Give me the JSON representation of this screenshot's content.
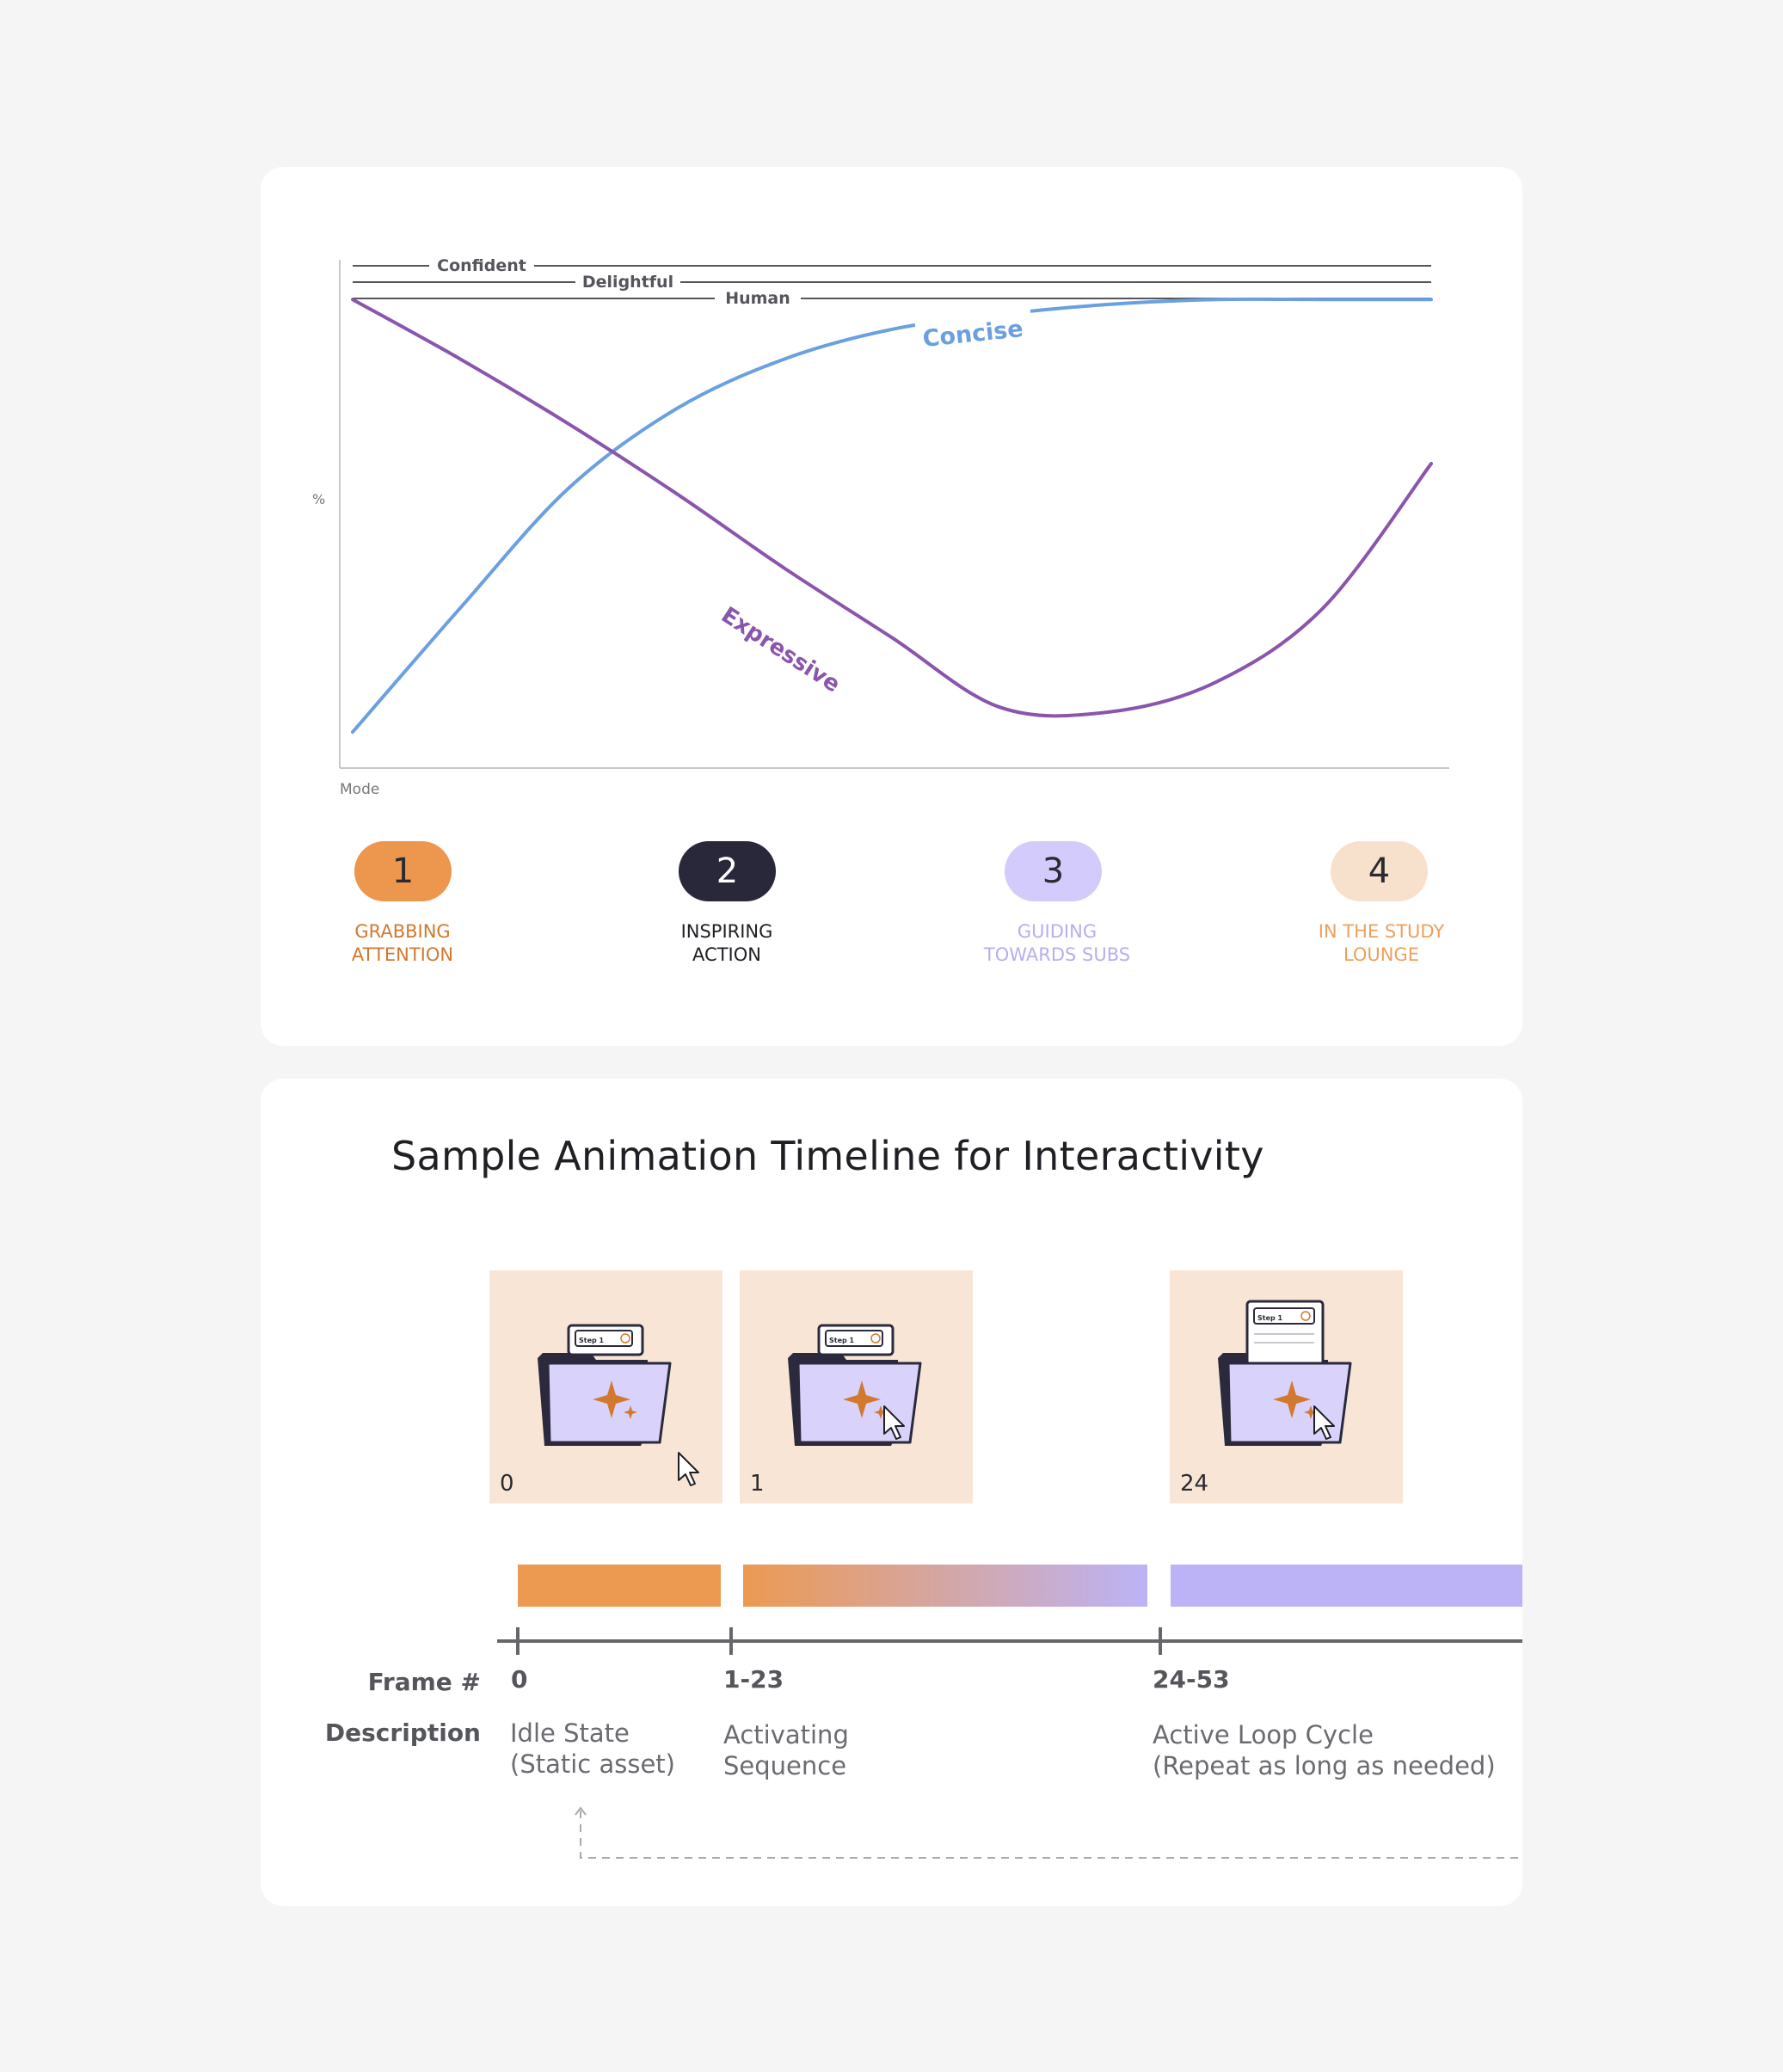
{
  "chart_data": {
    "type": "line",
    "title": "",
    "xlabel": "Mode",
    "ylabel": "%",
    "x": [
      0,
      0.1,
      0.2,
      0.3,
      0.4,
      0.5,
      0.6,
      0.7,
      0.8,
      0.9,
      1.0
    ],
    "series": [
      {
        "name": "Concise",
        "color": "#6aa0e0",
        "values": [
          5,
          30,
          54,
          70,
          80,
          86,
          89,
          91,
          92,
          92,
          92
        ]
      },
      {
        "name": "Expressive",
        "color": "#8a55ad",
        "values": [
          92,
          80,
          67,
          53,
          38,
          24,
          10,
          9,
          15,
          30,
          59
        ]
      }
    ],
    "reference_lines": [
      {
        "label": "Confident"
      },
      {
        "label": "Delightful"
      },
      {
        "label": "Human"
      }
    ],
    "grid": false,
    "ylim": [
      0,
      100
    ]
  },
  "stages": [
    {
      "number": "1",
      "label": "GRABBING\nATTENTION",
      "pill_color": "#ed964e",
      "number_color": "#2a2a30",
      "label_color": "#d2792f"
    },
    {
      "number": "2",
      "label": "INSPIRING\nACTION",
      "pill_color": "#28283a",
      "number_color": "#ffffff",
      "label_color": "#1f1f24"
    },
    {
      "number": "3",
      "label": "GUIDING\nTOWARDS SUBS",
      "pill_color": "#d3cbfb",
      "number_color": "#2a2a30",
      "label_color": "#b7aef0"
    },
    {
      "number": "4",
      "label": "IN THE STUDY\nLOUNGE",
      "pill_color": "#f8e1cc",
      "number_color": "#2a2a30",
      "label_color": "#eba15c"
    }
  ],
  "timeline": {
    "title": "Sample Animation Timeline for Interactivity",
    "frame_label": "Frame #",
    "description_label": "Description",
    "thumbnails": [
      {
        "frame": "0",
        "card_text": "Step 1"
      },
      {
        "frame": "1",
        "card_text": "Step 1"
      },
      {
        "frame": "24",
        "card_text": "Step 1"
      }
    ],
    "segments": [
      {
        "frames": "0",
        "description": "Idle State\n(Static asset)"
      },
      {
        "frames": "1-23",
        "description": "Activating\nSequence"
      },
      {
        "frames": "24-53",
        "description": "Active Loop Cycle\n(Repeat as long as needed)"
      }
    ],
    "colors": {
      "orange": "#ec9a52",
      "lavender": "#bcb3f7"
    }
  }
}
